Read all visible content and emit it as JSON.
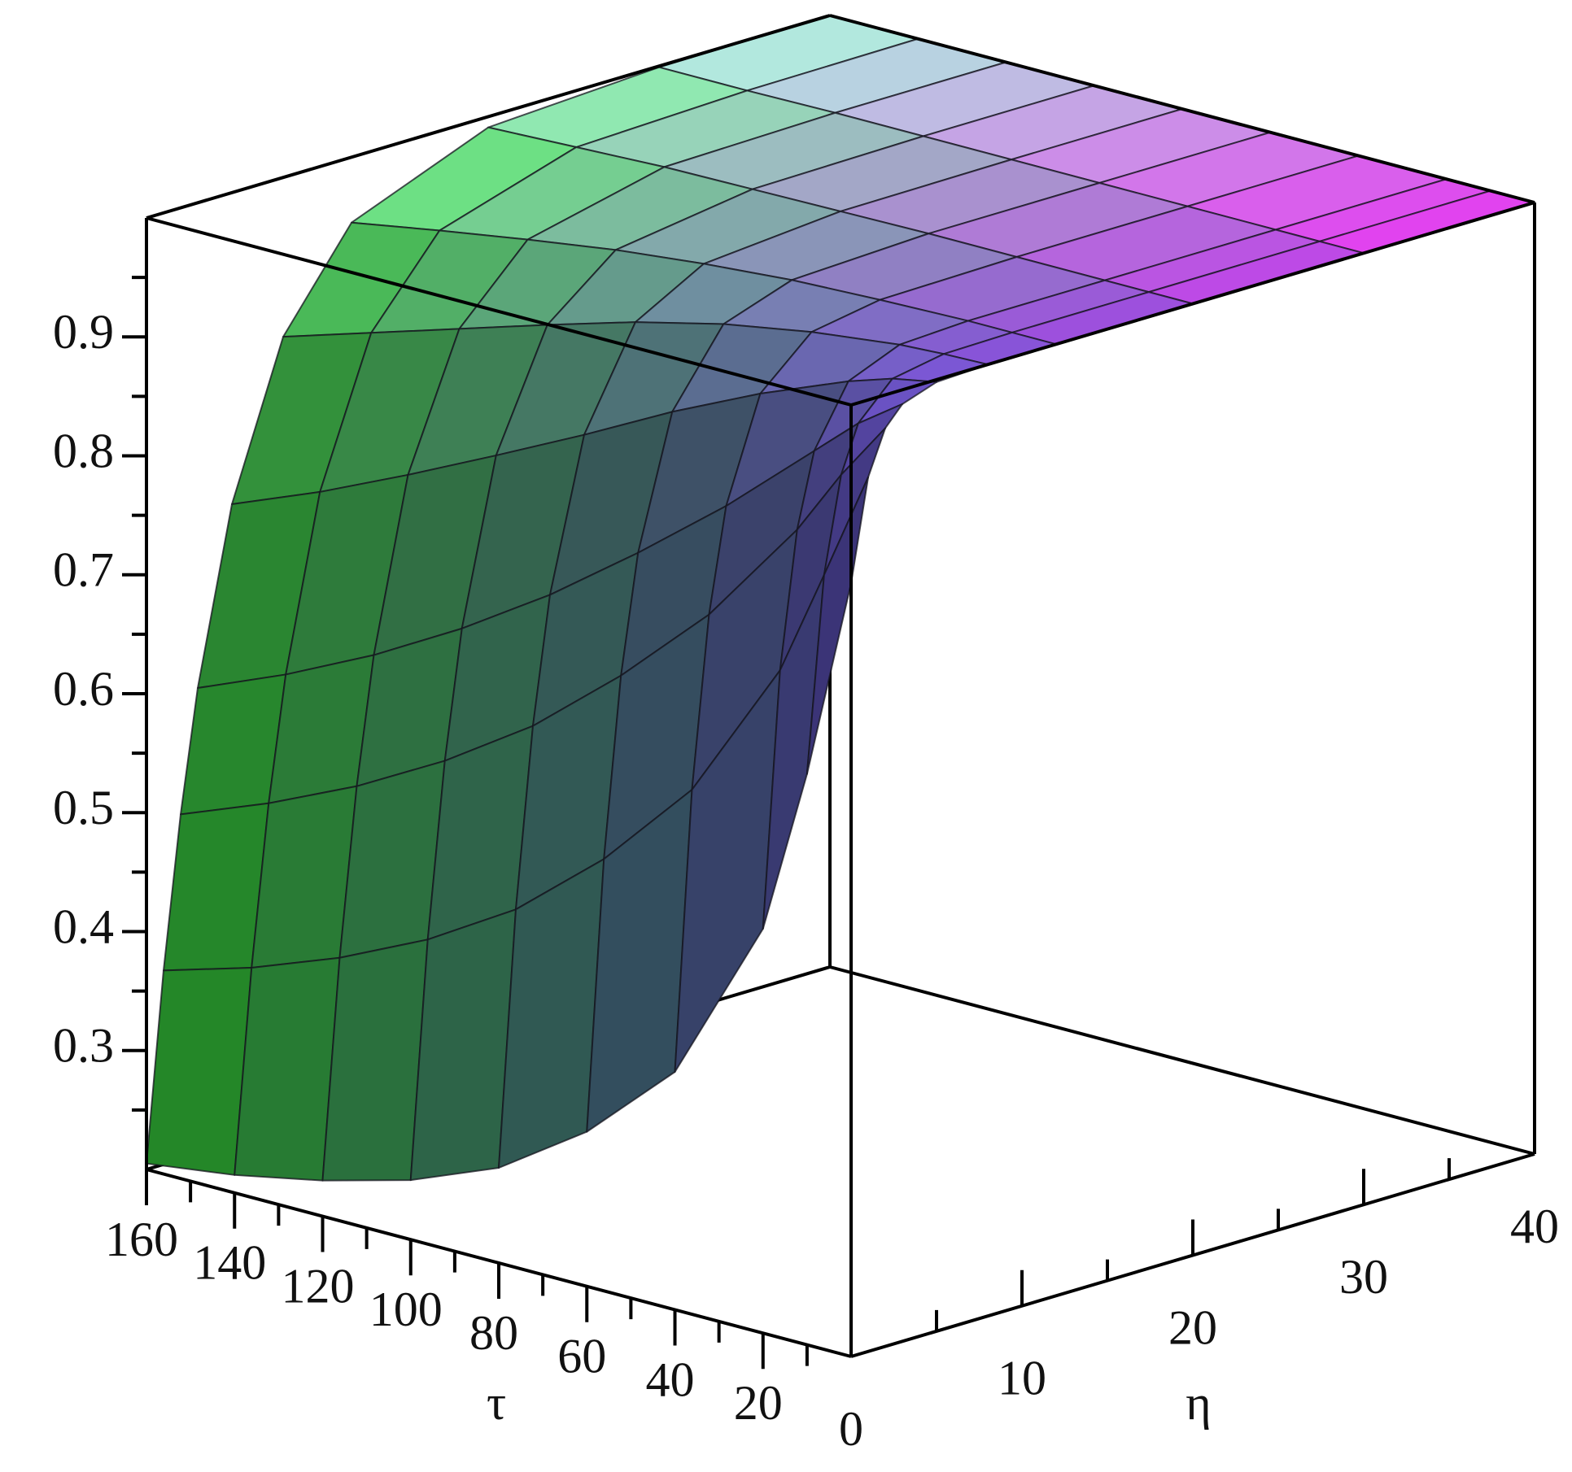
{
  "chart_data": {
    "type": "surface",
    "xlabel": "τ",
    "ylabel": "η",
    "x": [
      0,
      10,
      20,
      40,
      60,
      80,
      100,
      120,
      140,
      160
    ],
    "y": [
      0,
      1,
      2,
      3,
      5,
      8,
      12,
      20,
      30,
      40
    ],
    "z": [
      [
        0.85,
        0.935,
        0.972,
        0.988,
        0.998,
        1,
        1,
        1,
        1,
        1
      ],
      [
        0.68,
        0.843,
        0.923,
        0.962,
        0.991,
        0.999,
        1,
        1,
        1,
        1
      ],
      [
        0.54,
        0.753,
        0.867,
        0.929,
        0.979,
        0.997,
        1,
        1,
        1,
        1
      ],
      [
        0.4,
        0.633,
        0.776,
        0.863,
        0.949,
        0.988,
        0.998,
        1,
        1,
        1
      ],
      [
        0.33,
        0.555,
        0.705,
        0.804,
        0.914,
        0.975,
        0.995,
        1,
        1,
        1
      ],
      [
        0.28,
        0.493,
        0.643,
        0.749,
        0.875,
        0.957,
        0.989,
        0.999,
        1,
        1
      ],
      [
        0.25,
        0.448,
        0.594,
        0.701,
        0.838,
        0.935,
        0.981,
        0.998,
        1,
        1
      ],
      [
        0.23,
        0.413,
        0.553,
        0.659,
        0.802,
        0.912,
        0.97,
        0.997,
        1,
        1
      ],
      [
        0.215,
        0.385,
        0.519,
        0.623,
        0.768,
        0.889,
        0.958,
        0.994,
        0.999,
        1
      ],
      [
        0.205,
        0.363,
        0.49,
        0.592,
        0.738,
        0.866,
        0.945,
        0.991,
        0.999,
        1
      ]
    ],
    "xlim": [
      0,
      160
    ],
    "ylim": [
      0,
      40
    ],
    "zlim": [
      0.2,
      1
    ],
    "xticks": [
      20,
      40,
      60,
      80,
      100,
      120,
      140,
      160
    ],
    "xticks_minor": [
      10,
      30,
      50,
      70,
      90,
      110,
      130,
      150
    ],
    "yticks": [
      0,
      10,
      20,
      30,
      40
    ],
    "yticks_minor": [
      5,
      15,
      25,
      35
    ],
    "zticks": [
      0.3,
      0.4,
      0.5,
      0.6,
      0.7,
      0.8,
      0.9
    ],
    "zticks_minor": [
      0.25,
      0.35,
      0.45,
      0.55,
      0.65,
      0.75,
      0.85,
      0.95
    ],
    "colors": [
      "#6a5adc",
      "#3cff3c",
      "#ff3cff",
      "#c8ffff"
    ]
  }
}
